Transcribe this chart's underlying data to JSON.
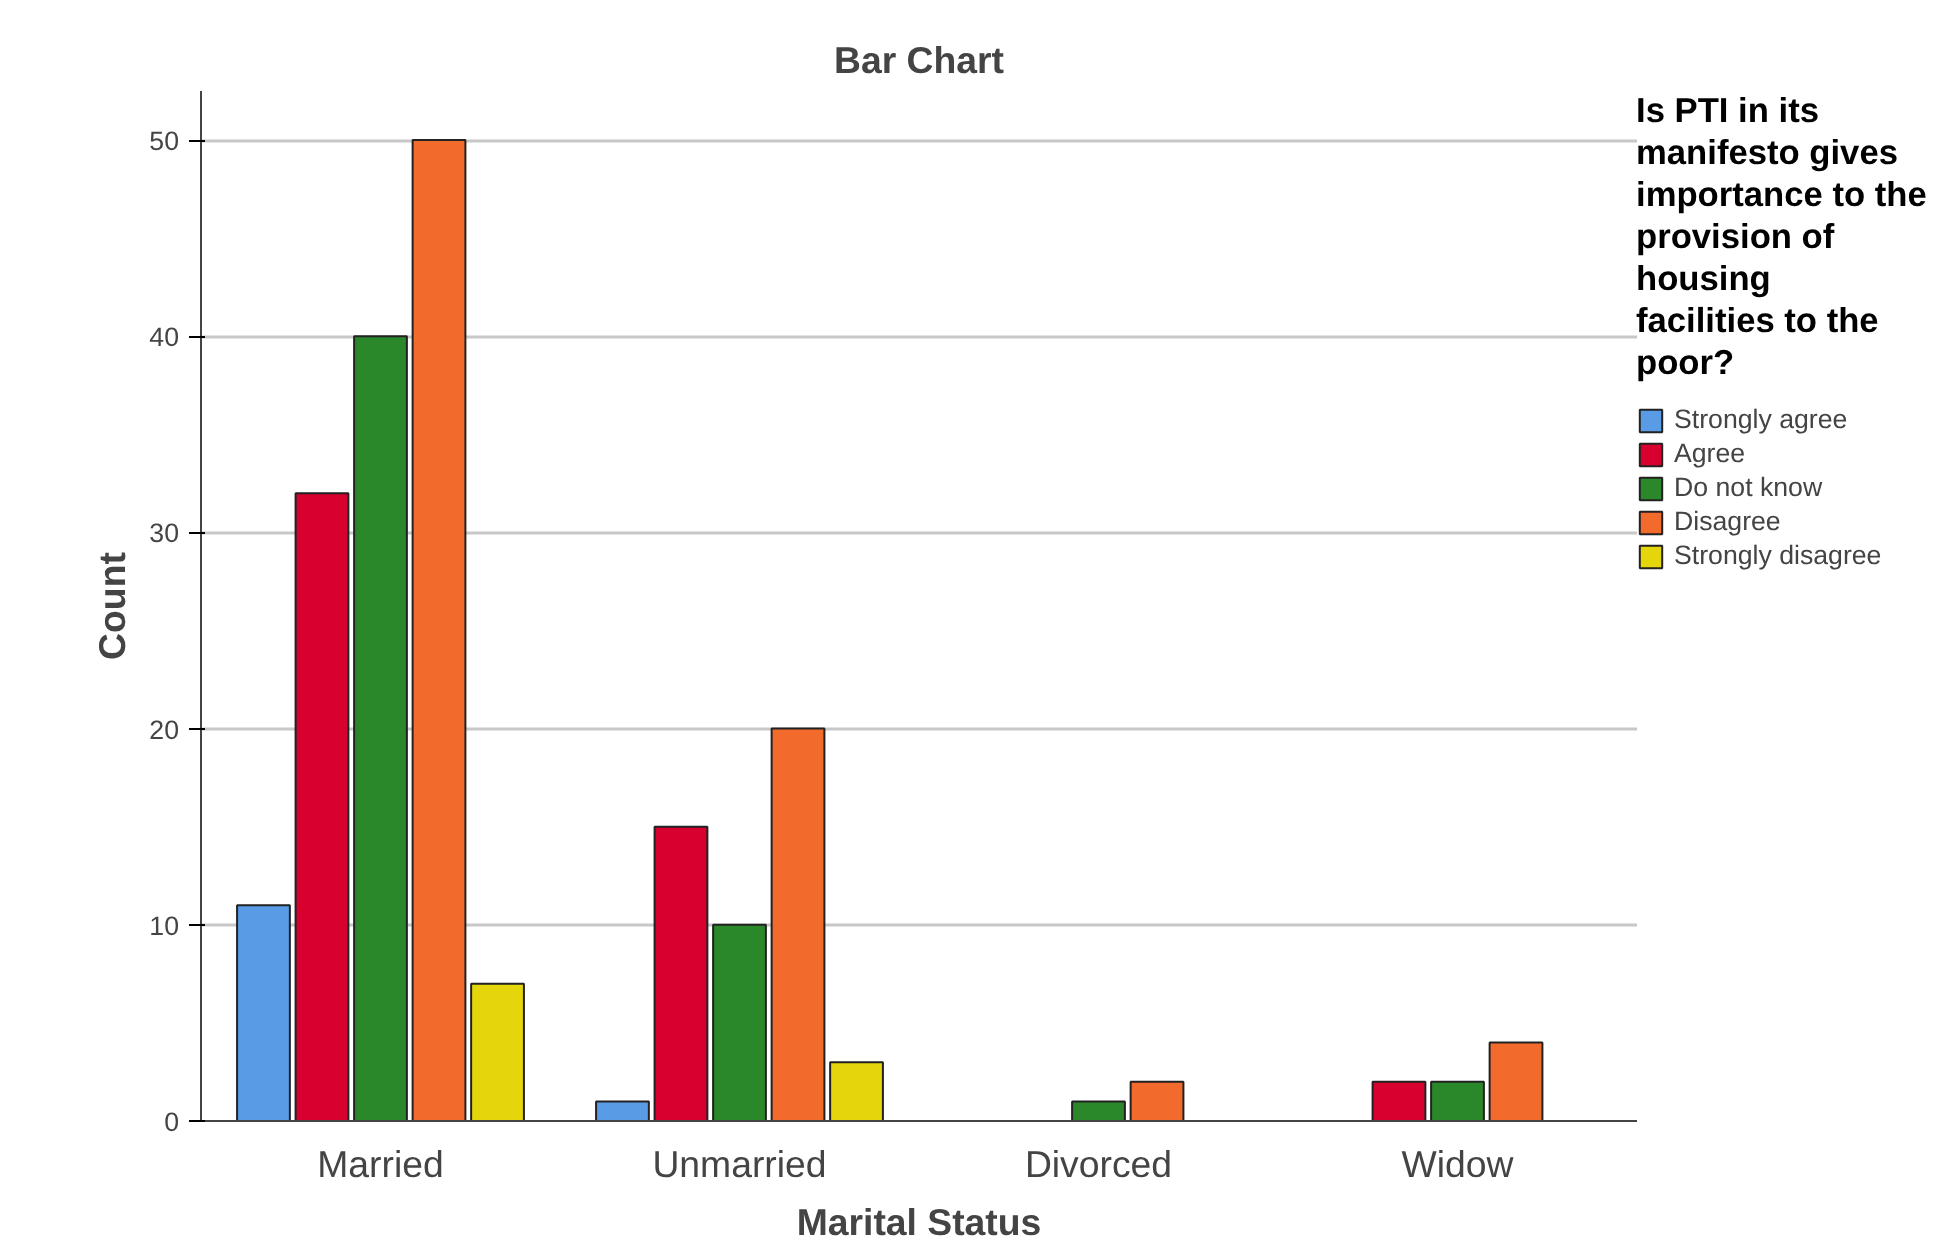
{
  "chart_data": {
    "type": "bar",
    "title": "Bar Chart",
    "xlabel": "Marital Status",
    "ylabel": "Count",
    "legend_title": "Is PTI in its manifesto gives importance to the provision of housing facilities to the poor?",
    "categories": [
      "Married",
      "Unmarried",
      "Divorced",
      "Widow"
    ],
    "series": [
      {
        "name": "Strongly agree",
        "color": "#5a9be6",
        "values": [
          11,
          1,
          null,
          null
        ]
      },
      {
        "name": "Agree",
        "color": "#d8002f",
        "values": [
          32,
          15,
          null,
          2
        ]
      },
      {
        "name": "Do not know",
        "color": "#2a872a",
        "values": [
          40,
          10,
          1,
          2
        ]
      },
      {
        "name": "Disagree",
        "color": "#f26b2c",
        "values": [
          50,
          20,
          2,
          4
        ]
      },
      {
        "name": "Strongly disagree",
        "color": "#e4d60b",
        "values": [
          7,
          3,
          null,
          null
        ]
      }
    ],
    "ylim": [
      0,
      52.5
    ],
    "yticks": [
      0,
      10,
      20,
      30,
      40,
      50
    ],
    "grid": "y",
    "legend": "right"
  }
}
